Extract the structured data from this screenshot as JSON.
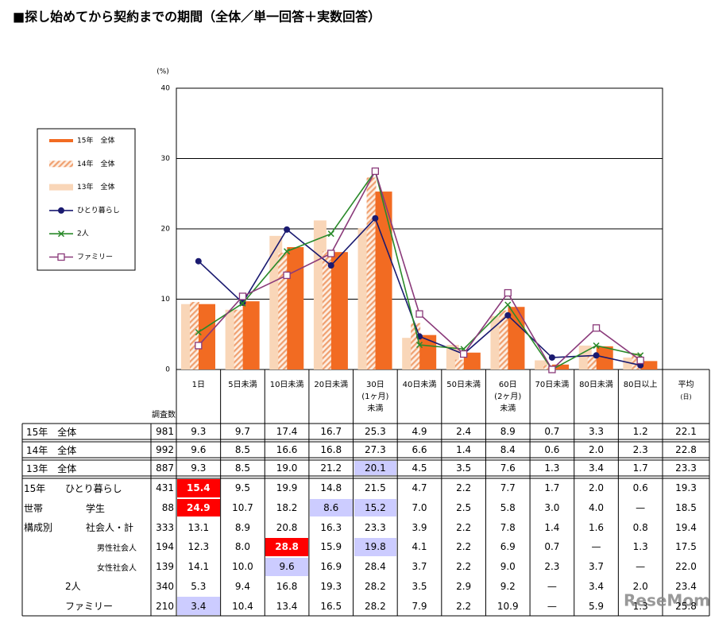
{
  "title": "■探し始めてから契約までの期間（全体／単一回答＋実数回答）",
  "watermark": "ReseMom",
  "chart_data": {
    "type": "bar",
    "y_label": "(%)",
    "ylim": [
      0,
      40
    ],
    "yticks": [
      0,
      10,
      20,
      30,
      40
    ],
    "grid": true,
    "categories": [
      "1日",
      "5日未満",
      "10日未満",
      "20日未満",
      "30日\n(1ヶ月)\n未満",
      "40日未満",
      "50日未満",
      "60日\n(2ヶ月)\n未満",
      "70日未満",
      "80日未満",
      "80日以上"
    ],
    "series": [
      {
        "name": "15年　全体",
        "style": "bar",
        "color": "#f26b22",
        "n": "981",
        "average": "22.1",
        "values": [
          9.3,
          9.7,
          17.4,
          16.7,
          25.3,
          4.9,
          2.4,
          8.9,
          0.7,
          3.3,
          1.2
        ],
        "value_labels": [
          "9.3",
          "9.7",
          "17.4",
          "16.7",
          "25.3",
          "4.9",
          "2.4",
          "8.9",
          "0.7",
          "3.3",
          "1.2"
        ]
      },
      {
        "name": "14年　全体",
        "style": "hatched",
        "color": "#f0a070",
        "n": "992",
        "average": "22.8",
        "values": [
          9.6,
          8.5,
          16.6,
          16.8,
          27.3,
          6.6,
          1.4,
          8.4,
          0.6,
          2.0,
          2.3
        ],
        "value_labels": [
          "9.6",
          "8.5",
          "16.6",
          "16.8",
          "27.3",
          "6.6",
          "1.4",
          "8.4",
          "0.6",
          "2.0",
          "2.3"
        ]
      },
      {
        "name": "13年　全体",
        "style": "bar",
        "color": "#f9d6b8",
        "n": "887",
        "average": "23.3",
        "values": [
          9.3,
          8.5,
          19.0,
          21.2,
          20.1,
          4.5,
          3.5,
          7.6,
          1.3,
          3.4,
          1.7
        ],
        "value_labels": [
          "9.3",
          "8.5",
          "19.0",
          "21.2",
          "20.1",
          "4.5",
          "3.5",
          "7.6",
          "1.3",
          "3.4",
          "1.7"
        ],
        "highlight": {
          "4": "#ccccff"
        }
      },
      {
        "name": "ひとり暮らし",
        "style": "line",
        "marker": "circle",
        "color": "#1a1a70",
        "n": "431",
        "average": "19.3",
        "values": [
          15.4,
          9.5,
          19.9,
          14.8,
          21.5,
          4.7,
          2.2,
          7.7,
          1.7,
          2.0,
          0.6
        ],
        "value_labels": [
          "15.4",
          "9.5",
          "19.9",
          "14.8",
          "21.5",
          "4.7",
          "2.2",
          "7.7",
          "1.7",
          "2.0",
          "0.6"
        ],
        "highlight": {
          "0": "#ff0000"
        }
      },
      {
        "name": "2人",
        "style": "line",
        "marker": "x",
        "color": "#2a8a2a",
        "n": "340",
        "average": "23.4",
        "values": [
          5.3,
          9.4,
          16.8,
          19.3,
          28.2,
          3.5,
          2.9,
          9.2,
          0,
          3.4,
          2.0
        ],
        "value_labels": [
          "5.3",
          "9.4",
          "16.8",
          "19.3",
          "28.2",
          "3.5",
          "2.9",
          "9.2",
          "—",
          "3.4",
          "2.0"
        ]
      },
      {
        "name": "ファミリー",
        "style": "line",
        "marker": "square",
        "color": "#8a3a7a",
        "n": "210",
        "average": "25.8",
        "values": [
          3.4,
          10.4,
          13.4,
          16.5,
          28.2,
          7.9,
          2.2,
          10.9,
          0,
          5.9,
          1.3
        ],
        "value_labels": [
          "3.4",
          "10.4",
          "13.4",
          "16.5",
          "28.2",
          "7.9",
          "2.2",
          "10.9",
          "—",
          "5.9",
          "1.3"
        ],
        "highlight": {
          "0": "#ccccff"
        }
      }
    ]
  },
  "table": {
    "n_header": "調査数",
    "average_header": "平均",
    "average_unit": "(日)",
    "group_label": [
      "15年",
      "世帯",
      "構成別"
    ],
    "rows": [
      {
        "label": "学生",
        "n": "88",
        "average": "18.5",
        "values": [
          "24.9",
          "10.7",
          "18.2",
          "8.6",
          "15.2",
          "7.0",
          "2.5",
          "5.8",
          "3.0",
          "4.0",
          "—"
        ],
        "highlight": {
          "0": "#ff0000",
          "3": "#ccccff",
          "4": "#ccccff"
        }
      },
      {
        "label": "社会人・計",
        "n": "333",
        "average": "19.4",
        "values": [
          "13.1",
          "8.9",
          "20.8",
          "16.3",
          "23.3",
          "3.9",
          "2.2",
          "7.8",
          "1.4",
          "1.6",
          "0.8"
        ]
      },
      {
        "label": "男性社会人",
        "n": "194",
        "average": "17.5",
        "values": [
          "12.3",
          "8.0",
          "28.8",
          "15.9",
          "19.8",
          "4.1",
          "2.2",
          "6.9",
          "0.7",
          "—",
          "1.3"
        ],
        "highlight": {
          "2": "#ff0000",
          "4": "#ccccff"
        }
      },
      {
        "label": "女性社会人",
        "n": "139",
        "average": "22.0",
        "values": [
          "14.1",
          "10.0",
          "9.6",
          "16.9",
          "28.4",
          "3.7",
          "2.2",
          "9.0",
          "2.3",
          "3.7",
          "—"
        ],
        "highlight": {
          "2": "#ccccff"
        }
      }
    ]
  }
}
